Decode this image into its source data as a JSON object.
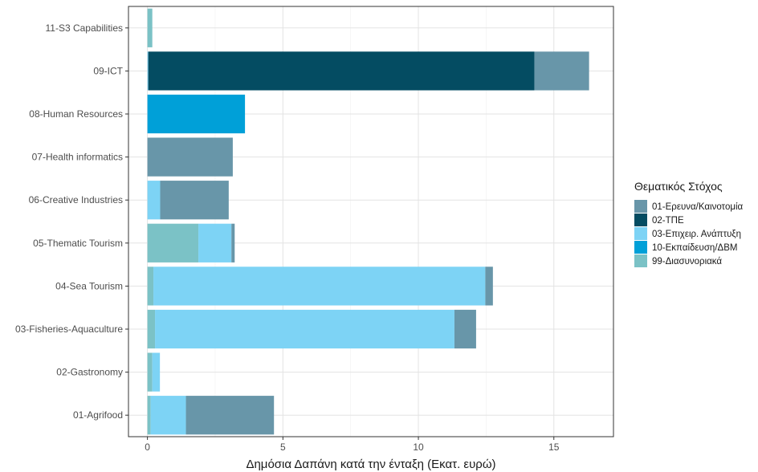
{
  "chart_data": {
    "type": "bar",
    "orientation": "horizontal",
    "stacked": true,
    "xlabel": "Δημόσια Δαπάνη κατά την ένταξη (Εκατ. ευρώ)",
    "ylabel": "",
    "xlim": [
      -0.7,
      17.2
    ],
    "xticks": [
      0,
      5,
      10,
      15
    ],
    "grid": true,
    "legend_position": "right",
    "legend_title": "Θεματικός Στόχος",
    "categories": [
      "01-Agrifood",
      "02-Gastronomy",
      "03-Fisheries-Aquaculture",
      "04-Sea Tourism",
      "05-Thematic Tourism",
      "06-Creative Industries",
      "07-Health informatics",
      "08-Human Resources",
      "09-ICT",
      "11-S3 Capabilities"
    ],
    "series": [
      {
        "name": "99-Διασυνοριακά",
        "color": "#7bc2c6",
        "values": [
          0.12,
          0.18,
          0.28,
          0.22,
          1.88,
          0,
          0,
          0,
          0,
          0.18
        ]
      },
      {
        "name": "10-Εκπαίδευση/ΔΒΜ",
        "color": "#00a0d8",
        "values": [
          0,
          0,
          0,
          0,
          0,
          0,
          0,
          3.6,
          0,
          0
        ]
      },
      {
        "name": "03-Επιχειρ. Ανάπτυξη",
        "color": "#7dd3f5",
        "values": [
          1.3,
          0.28,
          11.05,
          12.25,
          1.22,
          0.47,
          0,
          0,
          0.03,
          0
        ]
      },
      {
        "name": "02-ΤΠΕ",
        "color": "#044c62",
        "values": [
          0,
          0,
          0,
          0,
          0,
          0,
          0,
          0,
          14.25,
          0
        ]
      },
      {
        "name": "01-Ερευνα/Καινοτομία",
        "color": "#6896a9",
        "values": [
          3.25,
          0,
          0.8,
          0.28,
          0.12,
          2.53,
          3.15,
          0,
          2.02,
          0
        ]
      }
    ],
    "legend_order": [
      "01-Ερευνα/Καινοτομία",
      "02-ΤΠΕ",
      "03-Επιχειρ. Ανάπτυξη",
      "10-Εκπαίδευση/ΔΒΜ",
      "99-Διασυνοριακά"
    ]
  }
}
